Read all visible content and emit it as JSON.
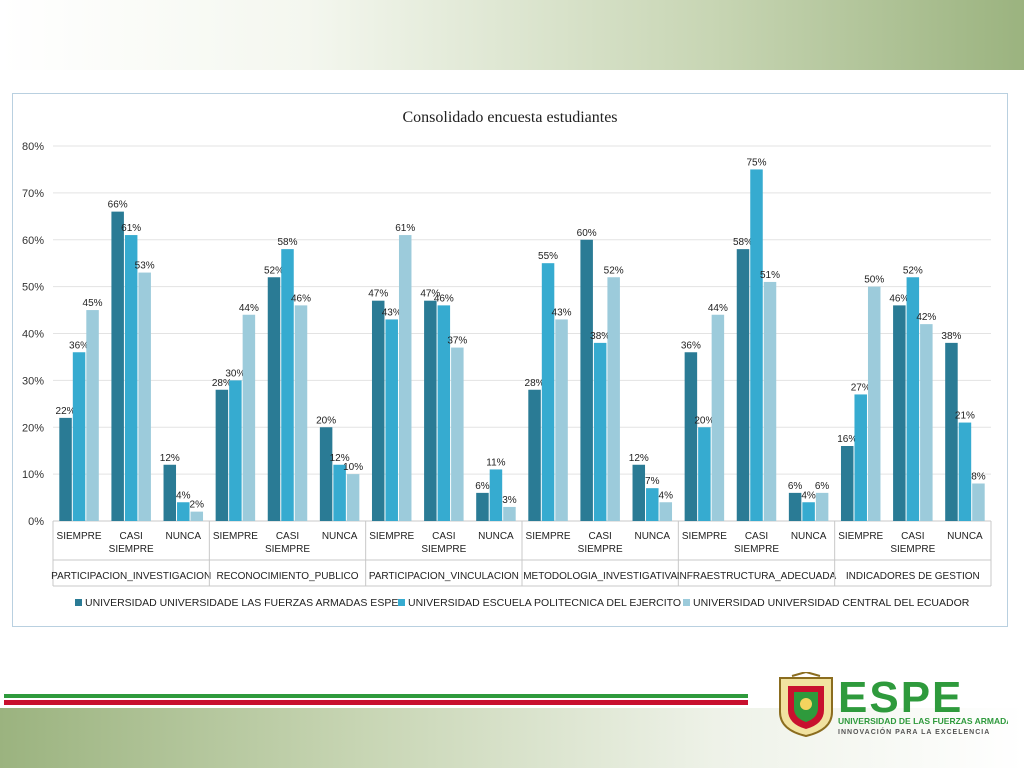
{
  "chart_data": {
    "type": "bar",
    "title": "Consolidado encuesta estudiantes",
    "ylim": [
      0,
      80
    ],
    "yticks": [
      "0%",
      "10%",
      "20%",
      "30%",
      "40%",
      "50%",
      "60%",
      "70%",
      "80%"
    ],
    "grid": true,
    "legend_position": "bottom",
    "groups": [
      {
        "name": "PARTICIPACION_INVESTIGACION",
        "categories": [
          "SIEMPRE",
          "CASI SIEMPRE",
          "NUNCA"
        ]
      },
      {
        "name": "RECONOCIMIENTO_PUBLICO",
        "categories": [
          "SIEMPRE",
          "CASI SIEMPRE",
          "NUNCA"
        ]
      },
      {
        "name": "PARTICIPACION_VINCULACION",
        "categories": [
          "SIEMPRE",
          "CASI SIEMPRE",
          "NUNCA"
        ]
      },
      {
        "name": "METODOLOGIA_INVESTIGATIVA",
        "categories": [
          "SIEMPRE",
          "CASI SIEMPRE",
          "NUNCA"
        ]
      },
      {
        "name": "INFRAESTRUCTURA_ADECUADA",
        "categories": [
          "SIEMPRE",
          "CASI SIEMPRE",
          "NUNCA"
        ]
      },
      {
        "name": "INDICADORES DE GESTION",
        "categories": [
          "SIEMPRE",
          "CASI SIEMPRE",
          "NUNCA"
        ]
      }
    ],
    "series": [
      {
        "name": "UNIVERSIDAD UNIVERSIDADE LAS FUERZAS ARMADAS ESPE",
        "color": "#2a7b95",
        "values": [
          22,
          66,
          12,
          28,
          52,
          20,
          47,
          47,
          6,
          28,
          60,
          12,
          36,
          58,
          6,
          16,
          46,
          38
        ]
      },
      {
        "name": "UNIVERSIDAD ESCUELA POLITECNICA DEL EJERCITO",
        "color": "#36abd0",
        "values": [
          36,
          61,
          4,
          30,
          58,
          12,
          43,
          46,
          11,
          55,
          38,
          7,
          20,
          75,
          4,
          27,
          52,
          21
        ]
      },
      {
        "name": "UNIVERSIDAD UNIVERSIDAD CENTRAL DEL ECUADOR",
        "color": "#9ccbdb",
        "values": [
          45,
          53,
          2,
          44,
          46,
          10,
          61,
          37,
          3,
          43,
          52,
          4,
          44,
          51,
          6,
          50,
          42,
          8
        ]
      }
    ]
  },
  "branding": {
    "name": "ESPE",
    "subtitle": "UNIVERSIDAD DE LAS FUERZAS ARMADAS",
    "tagline": "INNOVACIÓN PARA LA EXCELENCIA",
    "green": "#2e9a3c",
    "stripe_colors": [
      "#2e9a3c",
      "#c8102e"
    ]
  }
}
